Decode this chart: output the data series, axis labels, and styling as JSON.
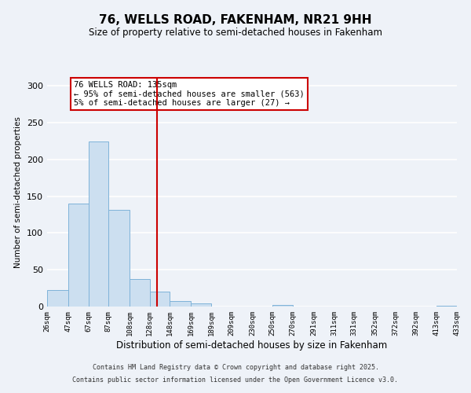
{
  "title": "76, WELLS ROAD, FAKENHAM, NR21 9HH",
  "subtitle": "Size of property relative to semi-detached houses in Fakenham",
  "xlabel": "Distribution of semi-detached houses by size in Fakenham",
  "ylabel": "Number of semi-detached properties",
  "bar_edges": [
    26,
    47,
    67,
    87,
    108,
    128,
    148,
    169,
    189,
    209,
    230,
    250,
    270,
    291,
    311,
    331,
    352,
    372,
    392,
    413,
    433
  ],
  "bar_heights": [
    22,
    140,
    224,
    132,
    37,
    20,
    7,
    4,
    0,
    0,
    0,
    2,
    0,
    0,
    0,
    0,
    0,
    0,
    0,
    1
  ],
  "bar_color": "#ccdff0",
  "bar_edge_color": "#7fb3d9",
  "vline_x": 135,
  "vline_color": "#cc0000",
  "ylim": [
    0,
    310
  ],
  "yticks": [
    0,
    50,
    100,
    150,
    200,
    250,
    300
  ],
  "annotation_title": "76 WELLS ROAD: 135sqm",
  "annotation_line1": "← 95% of semi-detached houses are smaller (563)",
  "annotation_line2": "5% of semi-detached houses are larger (27) →",
  "annotation_box_color": "#ffffff",
  "annotation_box_edge_color": "#cc0000",
  "footer_line1": "Contains HM Land Registry data © Crown copyright and database right 2025.",
  "footer_line2": "Contains public sector information licensed under the Open Government Licence v3.0.",
  "background_color": "#eef2f8",
  "grid_color": "#ffffff",
  "tick_labels": [
    "26sqm",
    "47sqm",
    "67sqm",
    "87sqm",
    "108sqm",
    "128sqm",
    "148sqm",
    "169sqm",
    "189sqm",
    "209sqm",
    "230sqm",
    "250sqm",
    "270sqm",
    "291sqm",
    "311sqm",
    "331sqm",
    "352sqm",
    "372sqm",
    "392sqm",
    "413sqm",
    "433sqm"
  ]
}
